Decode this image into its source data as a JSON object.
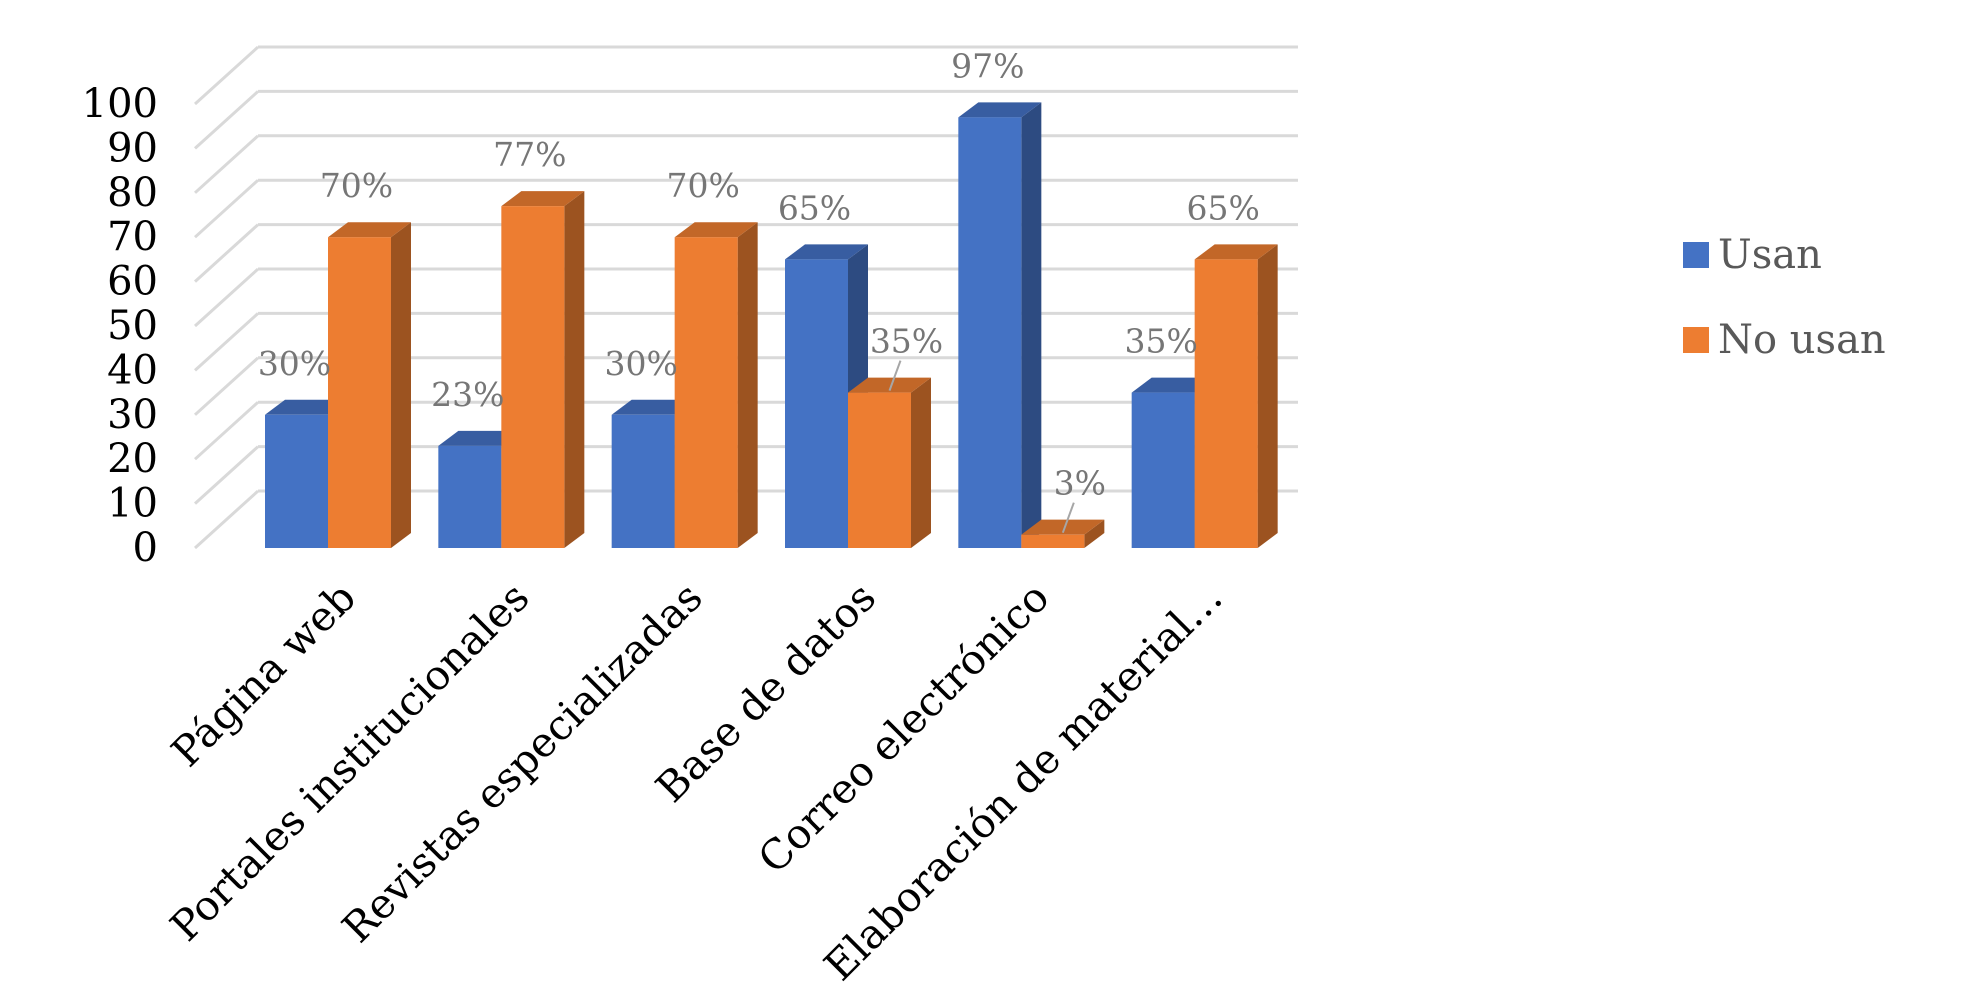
{
  "chart_data": {
    "type": "bar",
    "categories": [
      "Página web",
      "Portales institucionales",
      "Revistas especializadas",
      "Base de datos",
      "Correo electrónico",
      "Elaboración de material…"
    ],
    "series": [
      {
        "name": "Usan",
        "values": [
          30,
          23,
          30,
          65,
          97,
          35
        ],
        "labels": [
          "30%",
          "23%",
          "30%",
          "65%",
          "97%",
          "35%"
        ],
        "color": "#4472C4"
      },
      {
        "name": "No usan",
        "values": [
          70,
          77,
          70,
          35,
          3,
          65
        ],
        "labels": [
          "70%",
          "77%",
          "70%",
          "35%",
          "3%",
          "65%"
        ],
        "color": "#ED7D31"
      }
    ],
    "y_ticks": [
      "0",
      "10",
      "20",
      "30",
      "40",
      "50",
      "60",
      "70",
      "80",
      "90",
      "100"
    ],
    "ylim": [
      0,
      100
    ],
    "grid": true,
    "legend_position": "right",
    "style": "3d-clustered-column"
  }
}
